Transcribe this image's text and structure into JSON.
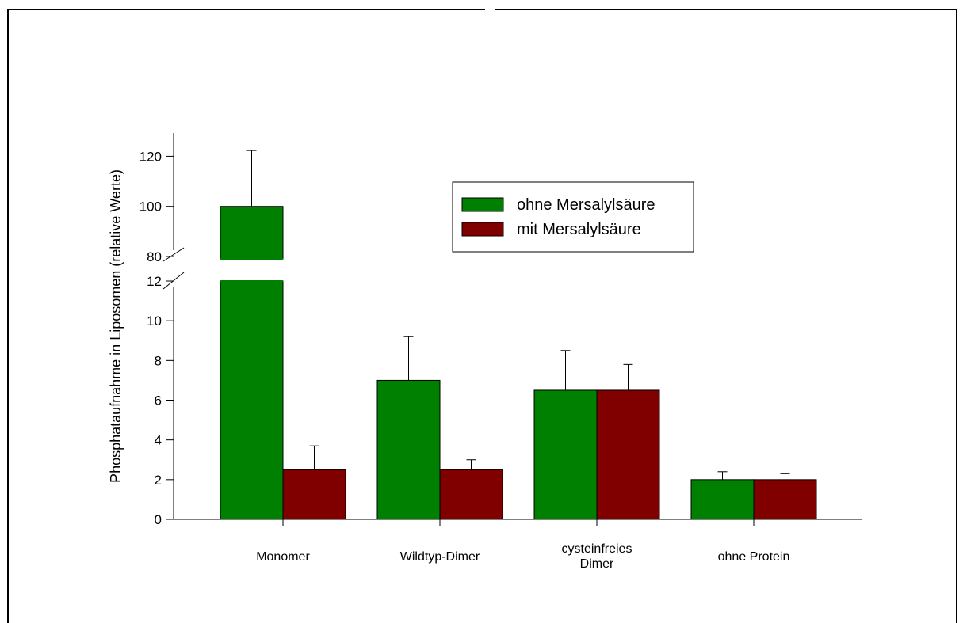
{
  "chart_data": {
    "type": "bar",
    "ylabel": "Phosphataufnahme in Liposomen (relative Werte)",
    "xlabel": "",
    "categories": [
      [
        "Monomer"
      ],
      [
        "Wildtyp-Dimer"
      ],
      [
        "cysteinfreies",
        "Dimer"
      ],
      [
        "ohne Protein"
      ]
    ],
    "series": [
      {
        "name": "ohne Mersalylsäure",
        "color": "#008000",
        "values": [
          100,
          7.0,
          6.5,
          2.0
        ],
        "errors": [
          22.3,
          2.2,
          2.0,
          0.4
        ]
      },
      {
        "name": "mit Mersalylsäure",
        "color": "#800000",
        "values": [
          2.5,
          2.5,
          6.5,
          2.0
        ],
        "errors": [
          1.2,
          0.5,
          1.3,
          0.3
        ]
      }
    ],
    "y_axis": {
      "broken": true,
      "lower_range": [
        0,
        12
      ],
      "upper_range": [
        80,
        120
      ],
      "lower_ticks": [
        0,
        2,
        4,
        6,
        8,
        10,
        12
      ],
      "upper_ticks": [
        80,
        100,
        120
      ]
    },
    "legend_position": "top-right",
    "grid": false
  }
}
